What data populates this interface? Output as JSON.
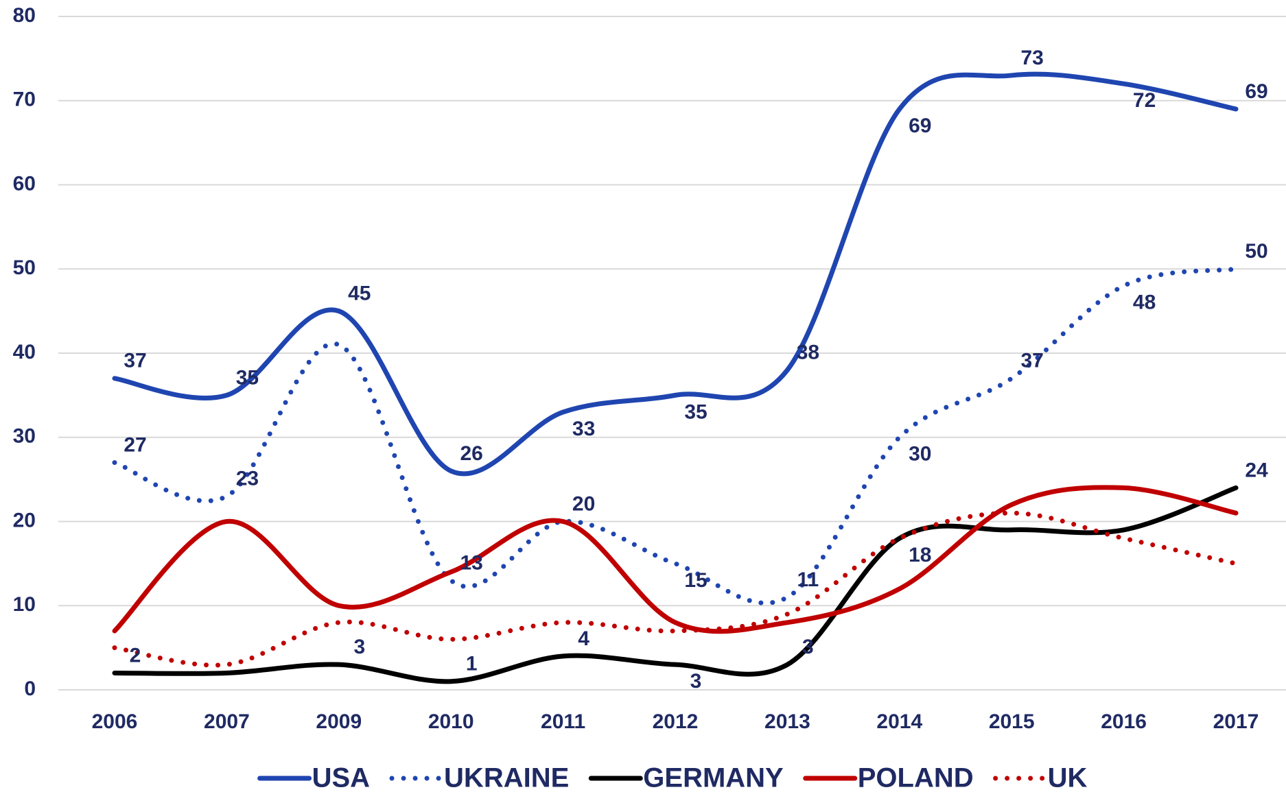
{
  "chart_data": {
    "type": "line",
    "categories": [
      "2006",
      "2007",
      "2009",
      "2010",
      "2011",
      "2012",
      "2013",
      "2014",
      "2015",
      "2016",
      "2017"
    ],
    "series": [
      {
        "name": "USA",
        "color": "#1f45b0",
        "style": "solid",
        "values": [
          37,
          35,
          45,
          26,
          33,
          35,
          38,
          69,
          73,
          72,
          69
        ],
        "value_labels": [
          "37",
          "35",
          "45",
          "26",
          "33",
          "35",
          "38",
          "69",
          "73",
          "72",
          "69"
        ]
      },
      {
        "name": "UKRAINE",
        "color": "#1f45b0",
        "style": "dotted",
        "values": [
          27,
          23,
          41,
          13,
          20,
          15,
          11,
          30,
          37,
          48,
          50
        ],
        "value_labels": [
          "27",
          "23",
          null,
          "13",
          "20",
          "15",
          "11",
          "30",
          "37",
          "48",
          "50"
        ]
      },
      {
        "name": "GERMANY",
        "color": "#000000",
        "style": "solid",
        "values": [
          2,
          2,
          3,
          1,
          4,
          3,
          3,
          18,
          19,
          19,
          24
        ],
        "value_labels": [
          "2",
          null,
          "3",
          "1",
          "4",
          "3",
          "3",
          "18",
          null,
          null,
          "24"
        ]
      },
      {
        "name": "POLAND",
        "color": "#c00000",
        "style": "solid",
        "values": [
          7,
          20,
          10,
          14,
          20,
          8,
          8,
          12,
          22,
          24,
          21
        ]
      },
      {
        "name": "UK",
        "color": "#c00000",
        "style": "dotted",
        "values": [
          5,
          3,
          8,
          6,
          8,
          7,
          9,
          18,
          21,
          18,
          15
        ]
      }
    ],
    "ylim": [
      0,
      80
    ],
    "yticks": [
      0,
      10,
      20,
      30,
      40,
      50,
      60,
      70,
      80
    ],
    "grid": true,
    "legend": "bottom"
  }
}
